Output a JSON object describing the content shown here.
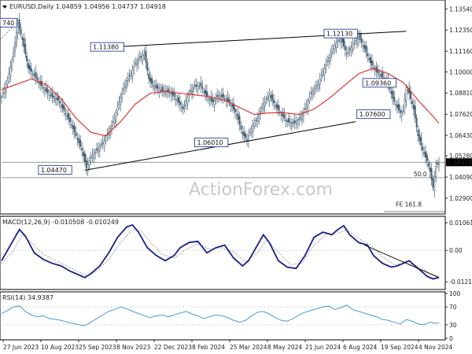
{
  "chart_data": {
    "type": "candlestick",
    "main": {
      "header": "EURUSD,Daily 1.04859 1.04956 1.04737 1.04918",
      "current_price": 1.04918,
      "current_price_label": "1.04918",
      "ylim": [
        1.021,
        1.1395
      ],
      "y_ticks": [
        "1.13540",
        "1.12350",
        "1.11160",
        "1.10000",
        "1.08810",
        "1.07620",
        "1.06430",
        "1.05280",
        "1.04090",
        "1.02900"
      ],
      "x_ticks": [
        "27 Jun 2023",
        "10 Aug 2023",
        "25 Sep 2023",
        "8 Nov 2023",
        "22 Dec 2023",
        "8 Feb 2024",
        "25 Mar 2024",
        "8 May 2024",
        "21 Jun 2024",
        "6 Aug 2024",
        "19 Sep 2024",
        "4 Nov 2024"
      ],
      "price_path": [
        [
          0,
          1.086
        ],
        [
          4,
          1.095
        ],
        [
          8,
          1.111
        ],
        [
          11,
          1.1275
        ],
        [
          14,
          1.118
        ],
        [
          18,
          1.102
        ],
        [
          22,
          1.098
        ],
        [
          26,
          1.093
        ],
        [
          30,
          1.089
        ],
        [
          34,
          1.086
        ],
        [
          38,
          1.084
        ],
        [
          42,
          1.078
        ],
        [
          46,
          1.072
        ],
        [
          50,
          1.064
        ],
        [
          54,
          1.056
        ],
        [
          57,
          1.046
        ],
        [
          60,
          1.052
        ],
        [
          64,
          1.056
        ],
        [
          68,
          1.06
        ],
        [
          72,
          1.066
        ],
        [
          76,
          1.074
        ],
        [
          80,
          1.086
        ],
        [
          84,
          1.095
        ],
        [
          87,
          1.099
        ],
        [
          90,
          1.105
        ],
        [
          93,
          1.108
        ],
        [
          96,
          1.11
        ],
        [
          99,
          1.096
        ],
        [
          102,
          1.092
        ],
        [
          106,
          1.09
        ],
        [
          110,
          1.089
        ],
        [
          114,
          1.088
        ],
        [
          118,
          1.084
        ],
        [
          122,
          1.079
        ],
        [
          126,
          1.088
        ],
        [
          130,
          1.092
        ],
        [
          134,
          1.092
        ],
        [
          138,
          1.086
        ],
        [
          142,
          1.083
        ],
        [
          146,
          1.087
        ],
        [
          150,
          1.085
        ],
        [
          154,
          1.082
        ],
        [
          158,
          1.076
        ],
        [
          162,
          1.065
        ],
        [
          165,
          1.062
        ],
        [
          168,
          1.068
        ],
        [
          172,
          1.074
        ],
        [
          176,
          1.082
        ],
        [
          180,
          1.087
        ],
        [
          184,
          1.081
        ],
        [
          188,
          1.076
        ],
        [
          192,
          1.072
        ],
        [
          196,
          1.071
        ],
        [
          200,
          1.073
        ],
        [
          204,
          1.079
        ],
        [
          208,
          1.088
        ],
        [
          212,
          1.092
        ],
        [
          216,
          1.1
        ],
        [
          220,
          1.108
        ],
        [
          224,
          1.115
        ],
        [
          228,
          1.119
        ],
        [
          232,
          1.11
        ],
        [
          236,
          1.115
        ],
        [
          240,
          1.12
        ],
        [
          244,
          1.113
        ],
        [
          248,
          1.105
        ],
        [
          252,
          1.1
        ],
        [
          256,
          1.097
        ],
        [
          260,
          1.093
        ],
        [
          263,
          1.085
        ],
        [
          266,
          1.08
        ],
        [
          268,
          1.077
        ],
        [
          270,
          1.078
        ],
        [
          272,
          1.091
        ],
        [
          274,
          1.088
        ],
        [
          277,
          1.079
        ],
        [
          280,
          1.064
        ],
        [
          283,
          1.056
        ],
        [
          286,
          1.05
        ],
        [
          288,
          1.044
        ],
        [
          290,
          1.035
        ],
        [
          292,
          1.047
        ],
        [
          294,
          1.0492
        ]
      ],
      "moving_average_path": [
        [
          0,
          1.09
        ],
        [
          10,
          1.093
        ],
        [
          20,
          1.096
        ],
        [
          30,
          1.093
        ],
        [
          40,
          1.085
        ],
        [
          50,
          1.074
        ],
        [
          60,
          1.066
        ],
        [
          70,
          1.064
        ],
        [
          80,
          1.072
        ],
        [
          90,
          1.082
        ],
        [
          100,
          1.088
        ],
        [
          110,
          1.089
        ],
        [
          120,
          1.088
        ],
        [
          130,
          1.087
        ],
        [
          140,
          1.086
        ],
        [
          150,
          1.084
        ],
        [
          160,
          1.08
        ],
        [
          170,
          1.076
        ],
        [
          180,
          1.077
        ],
        [
          190,
          1.077
        ],
        [
          200,
          1.076
        ],
        [
          210,
          1.079
        ],
        [
          220,
          1.085
        ],
        [
          230,
          1.092
        ],
        [
          240,
          1.099
        ],
        [
          250,
          1.102
        ],
        [
          260,
          1.099
        ],
        [
          270,
          1.094
        ],
        [
          280,
          1.084
        ],
        [
          290,
          1.075
        ],
        [
          294,
          1.071
        ]
      ],
      "trendlines": [
        {
          "from": [
            71,
            1.1138
          ],
          "to": [
            272,
            1.1228
          ]
        },
        {
          "from": [
            56,
            1.0447
          ],
          "to": [
            238,
            1.072
          ]
        }
      ],
      "horizontal_lines": [
        {
          "y": 1.04918,
          "from_x": 0,
          "note": "current price"
        },
        {
          "y": 1.0405,
          "from_x": 0,
          "note": "support"
        }
      ],
      "level_labels": [
        {
          "text": "1.11380",
          "x": 71,
          "y": 1.1138
        },
        {
          "text": "1.12130",
          "x": 228,
          "y": 1.1213
        },
        {
          "text": "1.09360",
          "x": 254,
          "y": 1.0936
        },
        {
          "text": "1.07600",
          "x": 250,
          "y": 1.076
        },
        {
          "text": "1.06010",
          "x": 141,
          "y": 1.0601
        },
        {
          "text": "1.04470",
          "x": 36,
          "y": 1.0447
        },
        {
          "text": "740",
          "x": 0,
          "y": 1.1274
        }
      ],
      "annotations": [
        {
          "text": "50.0",
          "x": 277,
          "y": 1.0405
        },
        {
          "text": "FE 161.8",
          "x": 265,
          "y": 1.0235
        }
      ],
      "watermark": "ActionForex.com"
    },
    "macd": {
      "header": "MACD(12,26,9) -0.010508 -0.010249",
      "ylim": [
        -0.0145,
        0.0125
      ],
      "y_ticks": [
        "0.010618",
        "0.00",
        "-0.01212"
      ],
      "macd_path": [
        [
          0,
          -0.004
        ],
        [
          6,
          0.002
        ],
        [
          12,
          0.008
        ],
        [
          16,
          0.0055
        ],
        [
          22,
          -0.001
        ],
        [
          28,
          -0.0035
        ],
        [
          34,
          -0.005
        ],
        [
          40,
          -0.006
        ],
        [
          46,
          -0.008
        ],
        [
          52,
          -0.0095
        ],
        [
          56,
          -0.0105
        ],
        [
          60,
          -0.009
        ],
        [
          66,
          -0.006
        ],
        [
          72,
          -0.001
        ],
        [
          78,
          0.005
        ],
        [
          84,
          0.009
        ],
        [
          88,
          0.0098
        ],
        [
          92,
          0.007
        ],
        [
          98,
          0.001
        ],
        [
          104,
          -0.002
        ],
        [
          110,
          -0.004
        ],
        [
          116,
          -0.002
        ],
        [
          120,
          0.001
        ],
        [
          126,
          0.003
        ],
        [
          132,
          0.0035
        ],
        [
          138,
          -0.001
        ],
        [
          144,
          0.001
        ],
        [
          150,
          0.002
        ],
        [
          156,
          -0.003
        ],
        [
          162,
          -0.006
        ],
        [
          166,
          -0.004
        ],
        [
          172,
          0.002
        ],
        [
          176,
          0.006
        ],
        [
          180,
          0.003
        ],
        [
          186,
          -0.004
        ],
        [
          192,
          -0.0065
        ],
        [
          198,
          -0.007
        ],
        [
          204,
          -0.002
        ],
        [
          210,
          0.005
        ],
        [
          216,
          0.007
        ],
        [
          222,
          0.006
        ],
        [
          226,
          0.008
        ],
        [
          230,
          0.0095
        ],
        [
          234,
          0.006
        ],
        [
          240,
          0.003
        ],
        [
          246,
          0.002
        ],
        [
          250,
          -0.002
        ],
        [
          256,
          -0.005
        ],
        [
          262,
          -0.0065
        ],
        [
          266,
          -0.006
        ],
        [
          270,
          -0.005
        ],
        [
          274,
          -0.004
        ],
        [
          278,
          -0.006
        ],
        [
          282,
          -0.008
        ],
        [
          286,
          -0.01
        ],
        [
          290,
          -0.011
        ],
        [
          294,
          -0.0105
        ]
      ],
      "signal_path": [
        [
          0,
          -0.005
        ],
        [
          8,
          0.0
        ],
        [
          14,
          0.006
        ],
        [
          20,
          0.003
        ],
        [
          28,
          -0.0015
        ],
        [
          36,
          -0.004
        ],
        [
          44,
          -0.006
        ],
        [
          52,
          -0.0085
        ],
        [
          58,
          -0.0098
        ],
        [
          64,
          -0.008
        ],
        [
          72,
          -0.0035
        ],
        [
          80,
          0.003
        ],
        [
          88,
          0.008
        ],
        [
          94,
          0.0075
        ],
        [
          100,
          0.003
        ],
        [
          108,
          -0.0015
        ],
        [
          116,
          -0.003
        ],
        [
          124,
          0.0005
        ],
        [
          132,
          0.0025
        ],
        [
          140,
          0.0005
        ],
        [
          148,
          0.001
        ],
        [
          156,
          -0.0005
        ],
        [
          164,
          -0.0045
        ],
        [
          172,
          -0.001
        ],
        [
          178,
          0.004
        ],
        [
          186,
          -0.0005
        ],
        [
          194,
          -0.0055
        ],
        [
          202,
          -0.005
        ],
        [
          210,
          0.002
        ],
        [
          218,
          0.006
        ],
        [
          226,
          0.0065
        ],
        [
          232,
          0.008
        ],
        [
          240,
          0.0045
        ],
        [
          248,
          0.002
        ],
        [
          256,
          -0.0025
        ],
        [
          264,
          -0.0055
        ],
        [
          272,
          -0.005
        ],
        [
          280,
          -0.006
        ],
        [
          288,
          -0.009
        ],
        [
          294,
          -0.0102
        ]
      ],
      "trendline": {
        "from": [
          244,
          0.002
        ],
        "to": [
          294,
          -0.0105
        ]
      }
    },
    "rsi": {
      "header": "RSI(14) 34.9387",
      "ylim": [
        0,
        100
      ],
      "y_ticks": [
        "100",
        "70",
        "30",
        "0"
      ],
      "guide_levels": [
        70,
        30
      ],
      "rsi_path": [
        [
          0,
          55
        ],
        [
          4,
          62
        ],
        [
          8,
          70
        ],
        [
          12,
          72
        ],
        [
          16,
          60
        ],
        [
          20,
          52
        ],
        [
          24,
          48
        ],
        [
          28,
          50
        ],
        [
          32,
          44
        ],
        [
          36,
          42
        ],
        [
          40,
          40
        ],
        [
          44,
          36
        ],
        [
          48,
          33
        ],
        [
          52,
          30
        ],
        [
          56,
          28
        ],
        [
          60,
          36
        ],
        [
          64,
          44
        ],
        [
          68,
          52
        ],
        [
          72,
          60
        ],
        [
          76,
          64
        ],
        [
          80,
          70
        ],
        [
          84,
          66
        ],
        [
          88,
          60
        ],
        [
          92,
          55
        ],
        [
          96,
          50
        ],
        [
          100,
          46
        ],
        [
          104,
          50
        ],
        [
          108,
          52
        ],
        [
          112,
          48
        ],
        [
          116,
          52
        ],
        [
          120,
          56
        ],
        [
          124,
          60
        ],
        [
          128,
          54
        ],
        [
          132,
          50
        ],
        [
          136,
          44
        ],
        [
          140,
          48
        ],
        [
          144,
          52
        ],
        [
          148,
          50
        ],
        [
          152,
          46
        ],
        [
          156,
          40
        ],
        [
          160,
          36
        ],
        [
          164,
          40
        ],
        [
          168,
          50
        ],
        [
          172,
          58
        ],
        [
          176,
          60
        ],
        [
          180,
          54
        ],
        [
          184,
          46
        ],
        [
          188,
          40
        ],
        [
          192,
          38
        ],
        [
          196,
          44
        ],
        [
          200,
          52
        ],
        [
          204,
          58
        ],
        [
          208,
          62
        ],
        [
          212,
          66
        ],
        [
          216,
          70
        ],
        [
          220,
          72
        ],
        [
          224,
          64
        ],
        [
          228,
          68
        ],
        [
          232,
          74
        ],
        [
          236,
          64
        ],
        [
          240,
          60
        ],
        [
          244,
          56
        ],
        [
          248,
          52
        ],
        [
          252,
          48
        ],
        [
          256,
          42
        ],
        [
          260,
          40
        ],
        [
          264,
          36
        ],
        [
          268,
          32
        ],
        [
          272,
          42
        ],
        [
          276,
          38
        ],
        [
          280,
          32
        ],
        [
          284,
          30
        ],
        [
          288,
          36
        ],
        [
          292,
          33
        ],
        [
          294,
          35
        ]
      ]
    }
  }
}
